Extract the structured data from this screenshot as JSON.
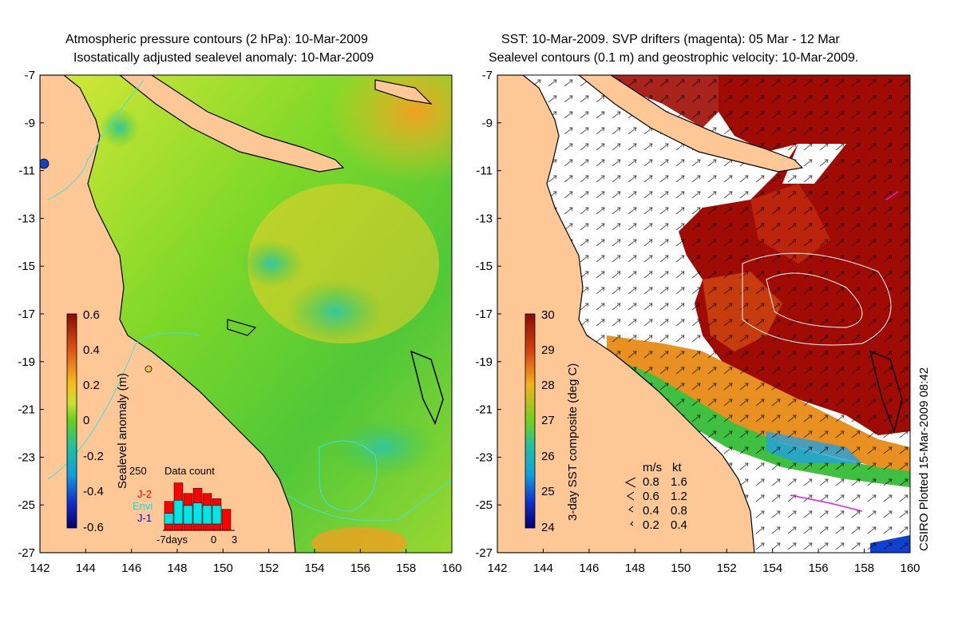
{
  "left_panel": {
    "title_line1": "Atmospheric pressure contours (2 hPa): 10-Mar-2009",
    "title_line2": "Isostatically adjusted sealevel anomaly: 10-Mar-2009",
    "colorbar_label": "Sealevel anomaly (m)",
    "colorbar_ticks": [
      "0.6",
      "0.4",
      "0.2",
      "0",
      "-0.2",
      "-0.4",
      "-0.6"
    ],
    "inset": {
      "title": "Data count",
      "ymax_label": "250",
      "legend": [
        {
          "label": "J-2",
          "color": "#ff0000"
        },
        {
          "label": "Envi",
          "color": "#00e5e5"
        },
        {
          "label": "J-1",
          "color": "#0000ff"
        }
      ],
      "xlabel_left": "-7days",
      "xlabel_mid": "0",
      "xlabel_right": "3",
      "bars_total": [
        0.55,
        0.9,
        0.7,
        0.8,
        0.7,
        0.6,
        0.4
      ],
      "bars_envi": [
        0.2,
        0.45,
        0.35,
        0.4,
        0.35,
        0.35,
        0.0
      ]
    }
  },
  "right_panel": {
    "title_line1": "SST: 10-Mar-2009. SVP drifters (magenta): 05 Mar - 12 Mar",
    "title_line2": "Sealevel contours (0.1 m) and geostrophic velocity: 10-Mar-2009.",
    "colorbar_label": "3-day SST composite (deg C)",
    "colorbar_ticks": [
      "30",
      "29",
      "28",
      "27",
      "26",
      "25",
      "24"
    ],
    "velocity_legend": {
      "header_ms": "m/s",
      "header_kt": "kt",
      "rows": [
        {
          "ms": "0.8",
          "kt": "1.6"
        },
        {
          "ms": "0.6",
          "kt": "1.2"
        },
        {
          "ms": "0.4",
          "kt": "0.8"
        },
        {
          "ms": "0.2",
          "kt": "0.4"
        }
      ]
    }
  },
  "axes": {
    "y_ticks": [
      "-7",
      "-9",
      "-11",
      "-13",
      "-15",
      "-17",
      "-19",
      "-21",
      "-23",
      "-25",
      "-27"
    ],
    "x_ticks": [
      "142",
      "144",
      "146",
      "148",
      "150",
      "152",
      "154",
      "156",
      "158",
      "160"
    ]
  },
  "credit": "CSIRO Plotted 15-Mar-2009 08:42",
  "colors": {
    "land": "#fdc896",
    "sst_hot": "#a00c04",
    "anomaly_green": "#5fd020"
  }
}
